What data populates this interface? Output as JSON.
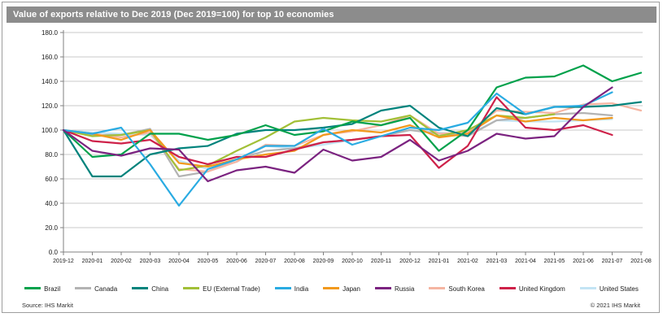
{
  "header": {
    "title": "Value of exports relative to Dec 2019 (Dec 2019=100) for top 10 economies",
    "bg_color": "#8c8c8c",
    "text_color": "#ffffff"
  },
  "footer": {
    "source": "Source: IHS Markit",
    "copyright": "© 2021 IHS Markit"
  },
  "chart_data": {
    "type": "line",
    "title": "Value of exports relative to Dec 2019 (Dec 2019=100) for top 10 economies",
    "xlabel": "",
    "ylabel": "",
    "ylim": [
      0,
      180
    ],
    "grid": "horizontal",
    "legend_position": "bottom",
    "x_categories": [
      "2019-12",
      "2020-01",
      "2020-02",
      "2020-03",
      "2020-04",
      "2020-05",
      "2020-06",
      "2020-07",
      "2020-08",
      "2020-09",
      "2020-10",
      "2020-11",
      "2020-12",
      "2021-01",
      "2021-02",
      "2021-03",
      "2021-04",
      "2021-05",
      "2021-06",
      "2021-07",
      "2021-08"
    ],
    "y_ticks": [
      {
        "value": 0,
        "label": "0.0"
      },
      {
        "value": 20,
        "label": "20.0"
      },
      {
        "value": 40,
        "label": "40.0"
      },
      {
        "value": 60,
        "label": "60.0"
      },
      {
        "value": 80,
        "label": "80.0"
      },
      {
        "value": 100,
        "label": "100.0"
      },
      {
        "value": 120,
        "label": "120.0"
      },
      {
        "value": 140,
        "label": "140.0"
      },
      {
        "value": 160,
        "label": "160.0"
      },
      {
        "value": 180,
        "label": "180.0"
      }
    ],
    "series": [
      {
        "id": "brazil",
        "name": "Brazil",
        "color": "#00A14B",
        "values": [
          100,
          78,
          80,
          97,
          97,
          92,
          96,
          104,
          96,
          99,
          107,
          104,
          110,
          83,
          100,
          135,
          143,
          144,
          153,
          140,
          147
        ]
      },
      {
        "id": "canada",
        "name": "Canada",
        "color": "#B3B3B3",
        "values": [
          100,
          96,
          96,
          101,
          62,
          66,
          76,
          83,
          85,
          90,
          92,
          95,
          100,
          97,
          95,
          108,
          110,
          113,
          114,
          112,
          null
        ]
      },
      {
        "id": "china",
        "name": "China",
        "color": "#00837C",
        "values": [
          100,
          62,
          62,
          80,
          85,
          87,
          97,
          100,
          100,
          102,
          105,
          116,
          120,
          102,
          95,
          118,
          113,
          119,
          119,
          120,
          123
        ]
      },
      {
        "id": "eu-external-trade",
        "name": "EU (External Trade)",
        "color": "#A2C037",
        "values": [
          100,
          95,
          96,
          100,
          67,
          71,
          83,
          94,
          107,
          110,
          108,
          107,
          112,
          95,
          100,
          112,
          110,
          113,
          null,
          null,
          null
        ]
      },
      {
        "id": "india",
        "name": "India",
        "color": "#29ABE2",
        "values": [
          100,
          97,
          102,
          72,
          38,
          68,
          76,
          87,
          87,
          101,
          88,
          95,
          102,
          100,
          106,
          130,
          113,
          119,
          120,
          131,
          null
        ]
      },
      {
        "id": "japan",
        "name": "Japan",
        "color": "#F2991D",
        "values": [
          100,
          97,
          92,
          100,
          73,
          70,
          76,
          80,
          83,
          96,
          100,
          98,
          104,
          94,
          97,
          112,
          107,
          110,
          108,
          110,
          null
        ]
      },
      {
        "id": "russia",
        "name": "Russia",
        "color": "#7B2380",
        "values": [
          100,
          83,
          79,
          85,
          84,
          58,
          67,
          70,
          65,
          84,
          75,
          78,
          92,
          75,
          83,
          97,
          93,
          95,
          119,
          135,
          null
        ]
      },
      {
        "id": "south-korea",
        "name": "South Korea",
        "color": "#F5B5A2",
        "values": [
          100,
          97,
          94,
          98,
          68,
          66,
          74,
          88,
          87,
          96,
          99,
          104,
          112,
          97,
          98,
          116,
          115,
          114,
          121,
          122,
          116
        ]
      },
      {
        "id": "united-kingdom",
        "name": "United Kingdom",
        "color": "#CE2149",
        "values": [
          100,
          91,
          89,
          92,
          78,
          72,
          78,
          78,
          84,
          90,
          92,
          95,
          96,
          69,
          87,
          127,
          102,
          100,
          104,
          96,
          null
        ]
      },
      {
        "id": "united-states",
        "name": "United States",
        "color": "#C3E4F4",
        "values": [
          100,
          98,
          97,
          96,
          75,
          68,
          74,
          87,
          85,
          88,
          92,
          95,
          100,
          98,
          96,
          108,
          107,
          107,
          108,
          109,
          null
        ]
      }
    ],
    "draw_order": [
      "united-states",
      "canada",
      "south-korea",
      "eu-external-trade",
      "japan",
      "united-kingdom",
      "china",
      "brazil",
      "india",
      "russia"
    ]
  }
}
